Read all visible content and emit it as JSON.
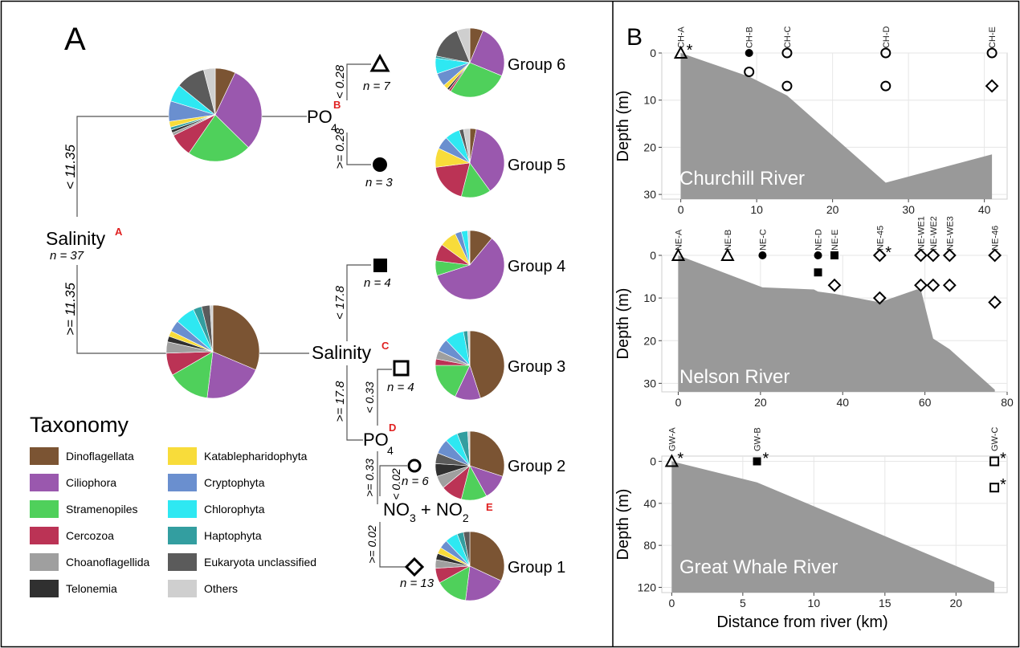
{
  "panel_a": {
    "label": "A",
    "nodes": {
      "root": {
        "name": "Salinity",
        "marker": "A",
        "n": "n = 37"
      },
      "po4_b": {
        "name": "PO",
        "sub": "4",
        "marker": "B"
      },
      "sal_c": {
        "name": "Salinity",
        "marker": "C"
      },
      "po4_d": {
        "name": "PO",
        "sub": "4",
        "marker": "D"
      },
      "no_e": {
        "name1": "NO",
        "sub1": "3",
        "plus": " + NO",
        "sub2": "2",
        "marker": "E"
      }
    },
    "splits": {
      "root_upper": "< 11.35",
      "root_lower": ">= 11.35",
      "b_upper": "< 0.28",
      "b_lower": ">= 0.28",
      "c_upper": "< 17.8",
      "c_lower": ">= 17.8",
      "d_upper": "< 0.33",
      "d_lower": ">= 0.33",
      "e_upper": "< 0.02",
      "e_lower": ">= 0.02"
    },
    "leaves": [
      {
        "id": "g6",
        "n": "n = 7",
        "shape": "triangle",
        "group": "Group 6"
      },
      {
        "id": "g5",
        "n": "n = 3",
        "shape": "circle-filled",
        "group": "Group 5"
      },
      {
        "id": "g4",
        "n": "n = 4",
        "shape": "square-filled",
        "group": "Group 4"
      },
      {
        "id": "g3",
        "n": "n = 4",
        "shape": "square-open",
        "group": "Group 3"
      },
      {
        "id": "g2",
        "n": "n = 6",
        "shape": "circle-open",
        "group": "Group 2"
      },
      {
        "id": "g1",
        "n": "n = 13",
        "shape": "diamond-open",
        "group": "Group 1"
      }
    ],
    "pies": {
      "upper": [
        [
          7,
          "Dinoflagellata"
        ],
        [
          30,
          "Ciliophora"
        ],
        [
          22,
          "Stramenopiles"
        ],
        [
          8,
          "Cercozoa"
        ],
        [
          1,
          "Choanoflagellida"
        ],
        [
          1,
          "Telonemia"
        ],
        [
          1,
          "Haptophyta"
        ],
        [
          2,
          "Katablepharidophyta"
        ],
        [
          7,
          "Cryptophyta"
        ],
        [
          6,
          "Chlorophyta"
        ],
        [
          10,
          "Eukaryota unclassified"
        ],
        [
          4,
          "Others"
        ]
      ],
      "lower": [
        [
          32,
          "Dinoflagellata"
        ],
        [
          21,
          "Ciliophora"
        ],
        [
          15,
          "Stramenopiles"
        ],
        [
          8,
          "Cercozoa"
        ],
        [
          4,
          "Choanoflagellida"
        ],
        [
          2,
          "Telonemia"
        ],
        [
          2,
          "Katablepharidophyta"
        ],
        [
          4,
          "Cryptophyta"
        ],
        [
          7,
          "Chlorophyta"
        ],
        [
          3,
          "Haptophyta"
        ],
        [
          3,
          "Eukaryota unclassified"
        ],
        [
          1,
          "Others"
        ]
      ],
      "g6": [
        [
          6,
          "Dinoflagellata"
        ],
        [
          24,
          "Ciliophora"
        ],
        [
          27,
          "Stramenopiles"
        ],
        [
          1,
          "Cercozoa"
        ],
        [
          1,
          "Telonemia"
        ],
        [
          2,
          "Katablepharidophyta"
        ],
        [
          6,
          "Cryptophyta"
        ],
        [
          7,
          "Chlorophyta"
        ],
        [
          1,
          "Haptophyta"
        ],
        [
          15,
          "Eukaryota unclassified"
        ],
        [
          6,
          "Others"
        ]
      ],
      "g5": [
        [
          3,
          "Dinoflagellata"
        ],
        [
          37,
          "Ciliophora"
        ],
        [
          14,
          "Stramenopiles"
        ],
        [
          19,
          "Cercozoa"
        ],
        [
          9,
          "Katablepharidophyta"
        ],
        [
          6,
          "Cryptophyta"
        ],
        [
          7,
          "Chlorophyta"
        ],
        [
          2,
          "Eukaryota unclassified"
        ],
        [
          3,
          "Others"
        ]
      ],
      "g4": [
        [
          11,
          "Dinoflagellata"
        ],
        [
          59,
          "Ciliophora"
        ],
        [
          7,
          "Stramenopiles"
        ],
        [
          8,
          "Cercozoa"
        ],
        [
          8,
          "Katablepharidophyta"
        ],
        [
          3,
          "Cryptophyta"
        ],
        [
          3,
          "Chlorophyta"
        ],
        [
          1,
          "Others"
        ]
      ],
      "g3": [
        [
          45,
          "Dinoflagellata"
        ],
        [
          12,
          "Ciliophora"
        ],
        [
          18,
          "Stramenopiles"
        ],
        [
          3,
          "Cercozoa"
        ],
        [
          4,
          "Choanoflagellida"
        ],
        [
          6,
          "Cryptophyta"
        ],
        [
          9,
          "Chlorophyta"
        ],
        [
          2,
          "Haptophyta"
        ],
        [
          1,
          "Others"
        ]
      ],
      "g2": [
        [
          30,
          "Dinoflagellata"
        ],
        [
          12,
          "Ciliophora"
        ],
        [
          12,
          "Stramenopiles"
        ],
        [
          10,
          "Cercozoa"
        ],
        [
          6,
          "Choanoflagellida"
        ],
        [
          6,
          "Telonemia"
        ],
        [
          5,
          "Eukaryota unclassified"
        ],
        [
          7,
          "Cryptophyta"
        ],
        [
          6,
          "Chlorophyta"
        ],
        [
          5,
          "Haptophyta"
        ],
        [
          1,
          "Others"
        ]
      ],
      "g1": [
        [
          32,
          "Dinoflagellata"
        ],
        [
          20,
          "Ciliophora"
        ],
        [
          15,
          "Stramenopiles"
        ],
        [
          7,
          "Cercozoa"
        ],
        [
          4,
          "Choanoflagellida"
        ],
        [
          3,
          "Telonemia"
        ],
        [
          3,
          "Katablepharidophyta"
        ],
        [
          4,
          "Cryptophyta"
        ],
        [
          6,
          "Chlorophyta"
        ],
        [
          3,
          "Haptophyta"
        ],
        [
          3,
          "Eukaryota unclassified"
        ]
      ]
    }
  },
  "legend": {
    "title": "Taxonomy",
    "items": [
      {
        "label": "Dinoflagellata",
        "color": "#7b5433"
      },
      {
        "label": "Ciliophora",
        "color": "#9a58ae"
      },
      {
        "label": "Stramenopiles",
        "color": "#4fd05b"
      },
      {
        "label": "Cercozoa",
        "color": "#bb3355"
      },
      {
        "label": "Choanoflagellida",
        "color": "#9f9f9f"
      },
      {
        "label": "Telonemia",
        "color": "#303030"
      },
      {
        "label": "Katablepharidophyta",
        "color": "#f8dc3a"
      },
      {
        "label": "Cryptophyta",
        "color": "#6a8fcf"
      },
      {
        "label": "Chlorophyta",
        "color": "#2ee8f2"
      },
      {
        "label": "Haptophyta",
        "color": "#339ea0"
      },
      {
        "label": "Eukaryota unclassified",
        "color": "#5b5b5b"
      },
      {
        "label": "Others",
        "color": "#cfcfcf"
      }
    ]
  },
  "panel_b": {
    "label": "B"
  },
  "chart_data": [
    {
      "type": "scatter",
      "title": "Churchill River",
      "ylabel": "Depth (m)",
      "xlabel": "",
      "xlim": [
        -2.5,
        43
      ],
      "ylim": [
        0,
        31
      ],
      "y_reversed": true,
      "x_ticks": [
        0,
        10,
        20,
        30,
        40
      ],
      "y_ticks": [
        0,
        10,
        20,
        30
      ],
      "grid": true,
      "stations": [
        {
          "name": "CH-A",
          "x": 0
        },
        {
          "name": "CH-B",
          "x": 9
        },
        {
          "name": "CH-C",
          "x": 14
        },
        {
          "name": "CH-D",
          "x": 27
        },
        {
          "name": "CH-E",
          "x": 41
        }
      ],
      "points": [
        {
          "x": 0,
          "y": 0,
          "shape": "triangle",
          "star": true
        },
        {
          "x": 9,
          "y": 0,
          "shape": "circle-filled"
        },
        {
          "x": 9,
          "y": 4,
          "shape": "circle-open"
        },
        {
          "x": 14,
          "y": 0,
          "shape": "circle-open"
        },
        {
          "x": 14,
          "y": 7,
          "shape": "circle-open"
        },
        {
          "x": 27,
          "y": 0,
          "shape": "circle-open"
        },
        {
          "x": 27,
          "y": 7,
          "shape": "circle-open"
        },
        {
          "x": 41,
          "y": 0,
          "shape": "circle-open"
        },
        {
          "x": 41,
          "y": 7,
          "shape": "diamond-open"
        }
      ],
      "bathymetry": [
        [
          0,
          0
        ],
        [
          9,
          5
        ],
        [
          14,
          9
        ],
        [
          27,
          27.5
        ],
        [
          41,
          21.5
        ]
      ]
    },
    {
      "type": "scatter",
      "title": "Nelson River",
      "ylabel": "Depth (m)",
      "xlabel": "",
      "xlim": [
        -4,
        80
      ],
      "ylim": [
        0,
        32
      ],
      "y_reversed": true,
      "x_ticks": [
        0,
        20,
        40,
        60,
        80
      ],
      "y_ticks": [
        0,
        10,
        20,
        30
      ],
      "grid": true,
      "stations": [
        {
          "name": "NE-A",
          "x": 0
        },
        {
          "name": "NE-B",
          "x": 12
        },
        {
          "name": "NE-C",
          "x": 20.5
        },
        {
          "name": "NE-D",
          "x": 34
        },
        {
          "name": "NE-E",
          "x": 38
        },
        {
          "name": "NE-45",
          "x": 49
        },
        {
          "name": "NE-WE1",
          "x": 59
        },
        {
          "name": "NE-WE2",
          "x": 62
        },
        {
          "name": "NE-WE3",
          "x": 66
        },
        {
          "name": "NE-46",
          "x": 77
        }
      ],
      "points": [
        {
          "x": 0,
          "y": 0,
          "shape": "triangle"
        },
        {
          "x": 12,
          "y": 0,
          "shape": "triangle"
        },
        {
          "x": 20.5,
          "y": 0,
          "shape": "circle-filled"
        },
        {
          "x": 34,
          "y": 0,
          "shape": "circle-filled"
        },
        {
          "x": 34,
          "y": 4,
          "shape": "square-filled"
        },
        {
          "x": 38,
          "y": 0,
          "shape": "square-filled"
        },
        {
          "x": 38,
          "y": 7,
          "shape": "diamond-open"
        },
        {
          "x": 49,
          "y": 0,
          "shape": "diamond-open",
          "star": true
        },
        {
          "x": 49,
          "y": 10,
          "shape": "diamond-open"
        },
        {
          "x": 59,
          "y": 0,
          "shape": "diamond-open"
        },
        {
          "x": 59,
          "y": 7,
          "shape": "diamond-open"
        },
        {
          "x": 62,
          "y": 0,
          "shape": "diamond-open"
        },
        {
          "x": 62,
          "y": 7,
          "shape": "diamond-open"
        },
        {
          "x": 66,
          "y": 0,
          "shape": "diamond-open"
        },
        {
          "x": 66,
          "y": 7,
          "shape": "diamond-open"
        },
        {
          "x": 77,
          "y": 0,
          "shape": "diamond-open"
        },
        {
          "x": 77,
          "y": 11,
          "shape": "diamond-open"
        }
      ],
      "bathymetry": [
        [
          0,
          0
        ],
        [
          20.5,
          7.5
        ],
        [
          33,
          8
        ],
        [
          34,
          8.5
        ],
        [
          38,
          9
        ],
        [
          49,
          11
        ],
        [
          58,
          8
        ],
        [
          59,
          8
        ],
        [
          62,
          19.5
        ],
        [
          66,
          22
        ],
        [
          77,
          31.5
        ]
      ]
    },
    {
      "type": "scatter",
      "title": "Great Whale River",
      "ylabel": "Depth (m)",
      "xlabel": "Distance from river (km)",
      "xlim": [
        -0.7,
        23.6
      ],
      "ylim": [
        -5,
        125
      ],
      "y_reversed": true,
      "x_ticks": [
        0,
        5,
        10,
        15,
        20
      ],
      "y_ticks": [
        0,
        40,
        80,
        120
      ],
      "grid": true,
      "stations": [
        {
          "name": "GW-A",
          "x": 0
        },
        {
          "name": "GW-B",
          "x": 6
        },
        {
          "name": "GW-C",
          "x": 22.7
        }
      ],
      "points": [
        {
          "x": 0,
          "y": 0,
          "shape": "triangle",
          "star": true
        },
        {
          "x": 6,
          "y": 0,
          "shape": "square-filled",
          "star": true
        },
        {
          "x": 22.7,
          "y": 0,
          "shape": "square-open",
          "star": true
        },
        {
          "x": 22.7,
          "y": 25,
          "shape": "square-open",
          "star": true
        }
      ],
      "bathymetry": [
        [
          0,
          0
        ],
        [
          6,
          20
        ],
        [
          22.7,
          115
        ]
      ]
    }
  ]
}
